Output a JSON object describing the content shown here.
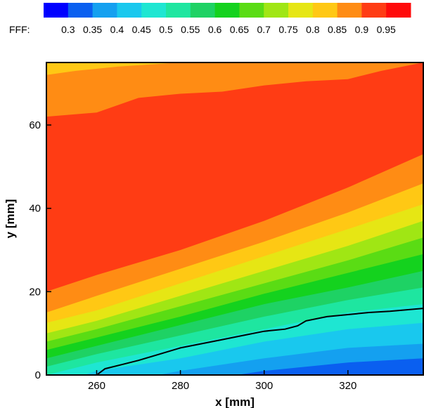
{
  "chart_data": {
    "type": "heatmap",
    "variable_label": "FFF:",
    "xlabel": "x [mm]",
    "ylabel": "y [mm]",
    "xlim": [
      248,
      338
    ],
    "ylim": [
      0,
      75
    ],
    "x_ticks": [
      260,
      280,
      300,
      320
    ],
    "y_ticks": [
      0,
      20,
      40,
      60
    ],
    "grid": false,
    "legend_position": "top",
    "colorbar": {
      "levels": [
        0.3,
        0.35,
        0.4,
        0.45,
        0.5,
        0.55,
        0.6,
        0.65,
        0.7,
        0.75,
        0.8,
        0.85,
        0.9,
        0.95
      ],
      "colors": [
        "#0000ff",
        "#0a5ff0",
        "#14a0f0",
        "#19c8ee",
        "#1ee6d2",
        "#1ee6a0",
        "#1ed264",
        "#14d21e",
        "#5adc14",
        "#a0e614",
        "#e6e614",
        "#ffc814",
        "#ff8c14",
        "#ff3c14",
        "#ff0a0a"
      ]
    },
    "contour_boundaries": [
      {
        "level": 0.35,
        "points": [
          [
            248,
            -10
          ],
          [
            300,
            -5
          ],
          [
            320,
            -2
          ],
          [
            338,
            0
          ]
        ]
      },
      {
        "level": 0.4,
        "points": [
          [
            248,
            -8
          ],
          [
            280,
            -2
          ],
          [
            300,
            1
          ],
          [
            320,
            3
          ],
          [
            338,
            4
          ]
        ]
      },
      {
        "level": 0.45,
        "points": [
          [
            248,
            -5
          ],
          [
            280,
            1
          ],
          [
            300,
            4
          ],
          [
            320,
            6.5
          ],
          [
            338,
            7.5
          ]
        ]
      },
      {
        "level": 0.5,
        "points": [
          [
            248,
            -3
          ],
          [
            260,
            1
          ],
          [
            280,
            4
          ],
          [
            300,
            8
          ],
          [
            320,
            11
          ],
          [
            338,
            12.5
          ]
        ]
      },
      {
        "level": 0.55,
        "points": [
          [
            248,
            0
          ],
          [
            260,
            3
          ],
          [
            280,
            7
          ],
          [
            300,
            11
          ],
          [
            320,
            15
          ],
          [
            338,
            17
          ]
        ]
      },
      {
        "level": 0.6,
        "points": [
          [
            248,
            2
          ],
          [
            260,
            5
          ],
          [
            280,
            9.5
          ],
          [
            300,
            14
          ],
          [
            320,
            18
          ],
          [
            338,
            21
          ]
        ]
      },
      {
        "level": 0.65,
        "points": [
          [
            248,
            4
          ],
          [
            260,
            7
          ],
          [
            280,
            12
          ],
          [
            300,
            17
          ],
          [
            320,
            21
          ],
          [
            338,
            25
          ]
        ]
      },
      {
        "level": 0.7,
        "points": [
          [
            248,
            6
          ],
          [
            260,
            9
          ],
          [
            280,
            14
          ],
          [
            300,
            19.5
          ],
          [
            320,
            24.5
          ],
          [
            338,
            29
          ]
        ]
      },
      {
        "level": 0.75,
        "points": [
          [
            248,
            8
          ],
          [
            260,
            11
          ],
          [
            280,
            16.5
          ],
          [
            300,
            22
          ],
          [
            320,
            27.5
          ],
          [
            338,
            33
          ]
        ]
      },
      {
        "level": 0.8,
        "points": [
          [
            248,
            10
          ],
          [
            260,
            13
          ],
          [
            280,
            19
          ],
          [
            300,
            25
          ],
          [
            320,
            31
          ],
          [
            338,
            37
          ]
        ]
      },
      {
        "level": 0.85,
        "points": [
          [
            248,
            12.5
          ],
          [
            260,
            15.5
          ],
          [
            280,
            22
          ],
          [
            300,
            28.5
          ],
          [
            320,
            35
          ],
          [
            338,
            41
          ]
        ]
      },
      {
        "level": 0.9,
        "points": [
          [
            248,
            15
          ],
          [
            260,
            19
          ],
          [
            280,
            25.5
          ],
          [
            300,
            32
          ],
          [
            320,
            39
          ],
          [
            338,
            46
          ]
        ]
      },
      {
        "level": 0.95,
        "points": [
          [
            248,
            20
          ],
          [
            260,
            24
          ],
          [
            280,
            30
          ],
          [
            300,
            37
          ],
          [
            320,
            45
          ],
          [
            338,
            53
          ]
        ]
      }
    ],
    "top_boundaries": [
      {
        "level": 0.9,
        "points": [
          [
            248,
            62
          ],
          [
            260,
            63
          ],
          [
            270,
            66.5
          ],
          [
            280,
            67.5
          ],
          [
            290,
            68
          ],
          [
            300,
            69.5
          ],
          [
            310,
            70.5
          ],
          [
            320,
            71
          ],
          [
            328,
            73
          ],
          [
            338,
            75
          ]
        ]
      },
      {
        "level": 0.85,
        "points": [
          [
            248,
            72
          ],
          [
            255,
            73
          ],
          [
            265,
            74
          ],
          [
            280,
            75
          ],
          [
            290,
            76
          ],
          [
            338,
            77
          ]
        ]
      }
    ],
    "contour_line": {
      "points": [
        [
          260,
          0
        ],
        [
          262,
          1.5
        ],
        [
          266,
          2.5
        ],
        [
          270,
          3.5
        ],
        [
          275,
          5
        ],
        [
          280,
          6.5
        ],
        [
          285,
          7.5
        ],
        [
          290,
          8.5
        ],
        [
          295,
          9.5
        ],
        [
          300,
          10.5
        ],
        [
          305,
          11
        ],
        [
          308,
          11.8
        ],
        [
          310,
          13
        ],
        [
          315,
          14
        ],
        [
          320,
          14.5
        ],
        [
          325,
          15
        ],
        [
          330,
          15.3
        ],
        [
          338,
          16
        ]
      ]
    }
  }
}
